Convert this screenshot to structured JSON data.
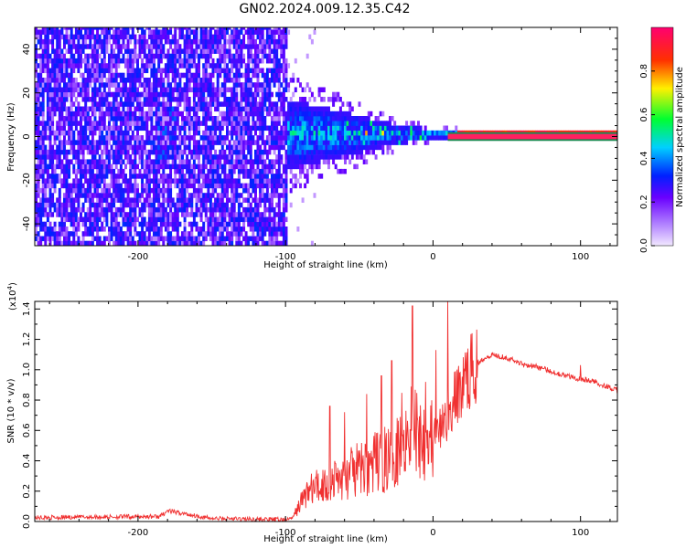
{
  "title": "GN02.2024.009.12.35.C42",
  "chart_data": [
    {
      "type": "heatmap",
      "xlabel": "Height of straight line (km)",
      "ylabel": "Frequency (Hz)",
      "xlim": [
        -270,
        125
      ],
      "ylim": [
        -50,
        50
      ],
      "xticks": [
        -200,
        -100,
        0,
        100
      ],
      "yticks": [
        -40,
        -20,
        0,
        20,
        40
      ],
      "noise_region_x": [
        -270,
        -100
      ],
      "signal_onset_x": -100,
      "signal_band_center_hz": 0,
      "signal_band_halfwidth_hz": [
        {
          "x": -100,
          "hz": 16
        },
        {
          "x": -60,
          "hz": 10
        },
        {
          "x": -30,
          "hz": 5
        },
        {
          "x": 0,
          "hz": 2
        },
        {
          "x": 30,
          "hz": 1.5
        },
        {
          "x": 125,
          "hz": 1.5
        }
      ],
      "colorbar": {
        "label": "Normalized spectral amplitude",
        "range": [
          0,
          1
        ],
        "ticks": [
          0.0,
          0.2,
          0.4,
          0.6,
          0.8
        ],
        "colormap": [
          "#f2e8ff",
          "#6a00ff",
          "#0020ff",
          "#00d0ff",
          "#00ff30",
          "#fff000",
          "#ff3000",
          "#ff0070"
        ]
      },
      "grid": false
    },
    {
      "type": "line",
      "xlabel": "Height of straight line (km)",
      "ylabel": "SNR (10 * v/v)",
      "scale_label": "(x10",
      "scale_exp": "4",
      "scale_close": ")",
      "xlim": [
        -270,
        125
      ],
      "ylim": [
        0,
        14500
      ],
      "xticks": [
        -200,
        -100,
        0,
        100
      ],
      "yticks": [
        0,
        2000,
        4000,
        6000,
        8000,
        10000,
        12000,
        14000
      ],
      "ytick_labels": [
        "0.0",
        "0.2",
        "0.4",
        "0.6",
        "0.8",
        "1.0",
        "1.2",
        "1.4"
      ],
      "color": "#f03030",
      "series": [
        {
          "x": [
            -270,
            -250,
            -230,
            -200,
            -185,
            -180,
            -150,
            -120,
            -100,
            -95,
            -90,
            -85,
            -80,
            -75,
            -70,
            -65,
            -60,
            -55,
            -50,
            -45,
            -40,
            -35,
            -30,
            -25,
            -20,
            -15,
            -10,
            -5,
            0,
            5,
            10,
            15,
            20,
            25,
            30,
            35,
            40,
            50,
            60,
            70,
            80,
            90,
            100,
            110,
            120,
            125
          ],
          "y": [
            250,
            280,
            300,
            320,
            330,
            700,
            200,
            150,
            120,
            250,
            1200,
            2000,
            2200,
            2400,
            2600,
            2800,
            2900,
            3200,
            3400,
            3600,
            3800,
            4000,
            4200,
            5000,
            6000,
            6500,
            5800,
            6000,
            5500,
            6000,
            7000,
            8000,
            9000,
            9800,
            10400,
            10800,
            11000,
            10800,
            10400,
            10200,
            9900,
            9600,
            9400,
            9200,
            8800,
            8600
          ]
        }
      ],
      "spikes": [
        {
          "x": -70,
          "y": 7600
        },
        {
          "x": -60,
          "y": 7200
        },
        {
          "x": -45,
          "y": 8400
        },
        {
          "x": -35,
          "y": 9600
        },
        {
          "x": -28,
          "y": 10600
        },
        {
          "x": -14,
          "y": 14200
        },
        {
          "x": -5,
          "y": 9200
        },
        {
          "x": 2,
          "y": 11300
        },
        {
          "x": 10,
          "y": 14500
        },
        {
          "x": 100,
          "y": 10300
        }
      ],
      "grid": false
    }
  ]
}
